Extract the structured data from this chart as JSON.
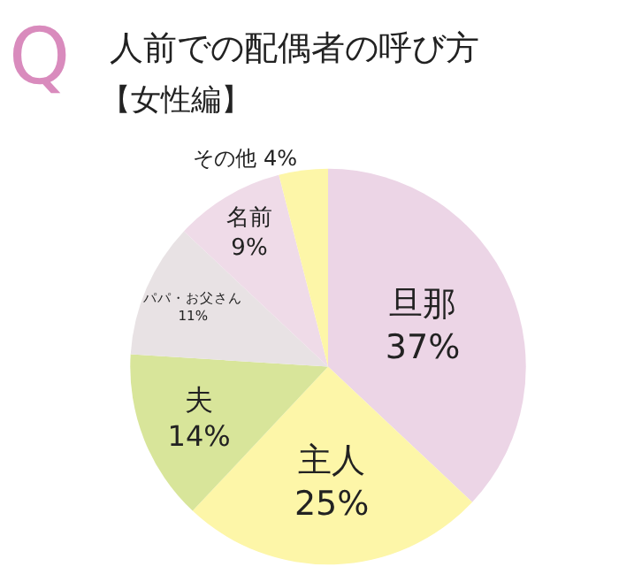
{
  "chart_data": {
    "type": "pie",
    "title": "人前での配偶者の呼び方",
    "subtitle": "【女性編】",
    "annotations": [
      "Q"
    ],
    "categories": [
      "旦那",
      "主人",
      "夫",
      "パパ・お父さん",
      "名前",
      "その他"
    ],
    "values": [
      37,
      25,
      14,
      11,
      9,
      4
    ],
    "value_labels": [
      "37%",
      "25%",
      "14%",
      "11%",
      "9%",
      "4%"
    ],
    "colors": [
      "#ecd5e6",
      "#fdf6a8",
      "#d8e59a",
      "#e8e2e4",
      "#efdbe8",
      "#fdf6a8"
    ],
    "legend": false
  }
}
